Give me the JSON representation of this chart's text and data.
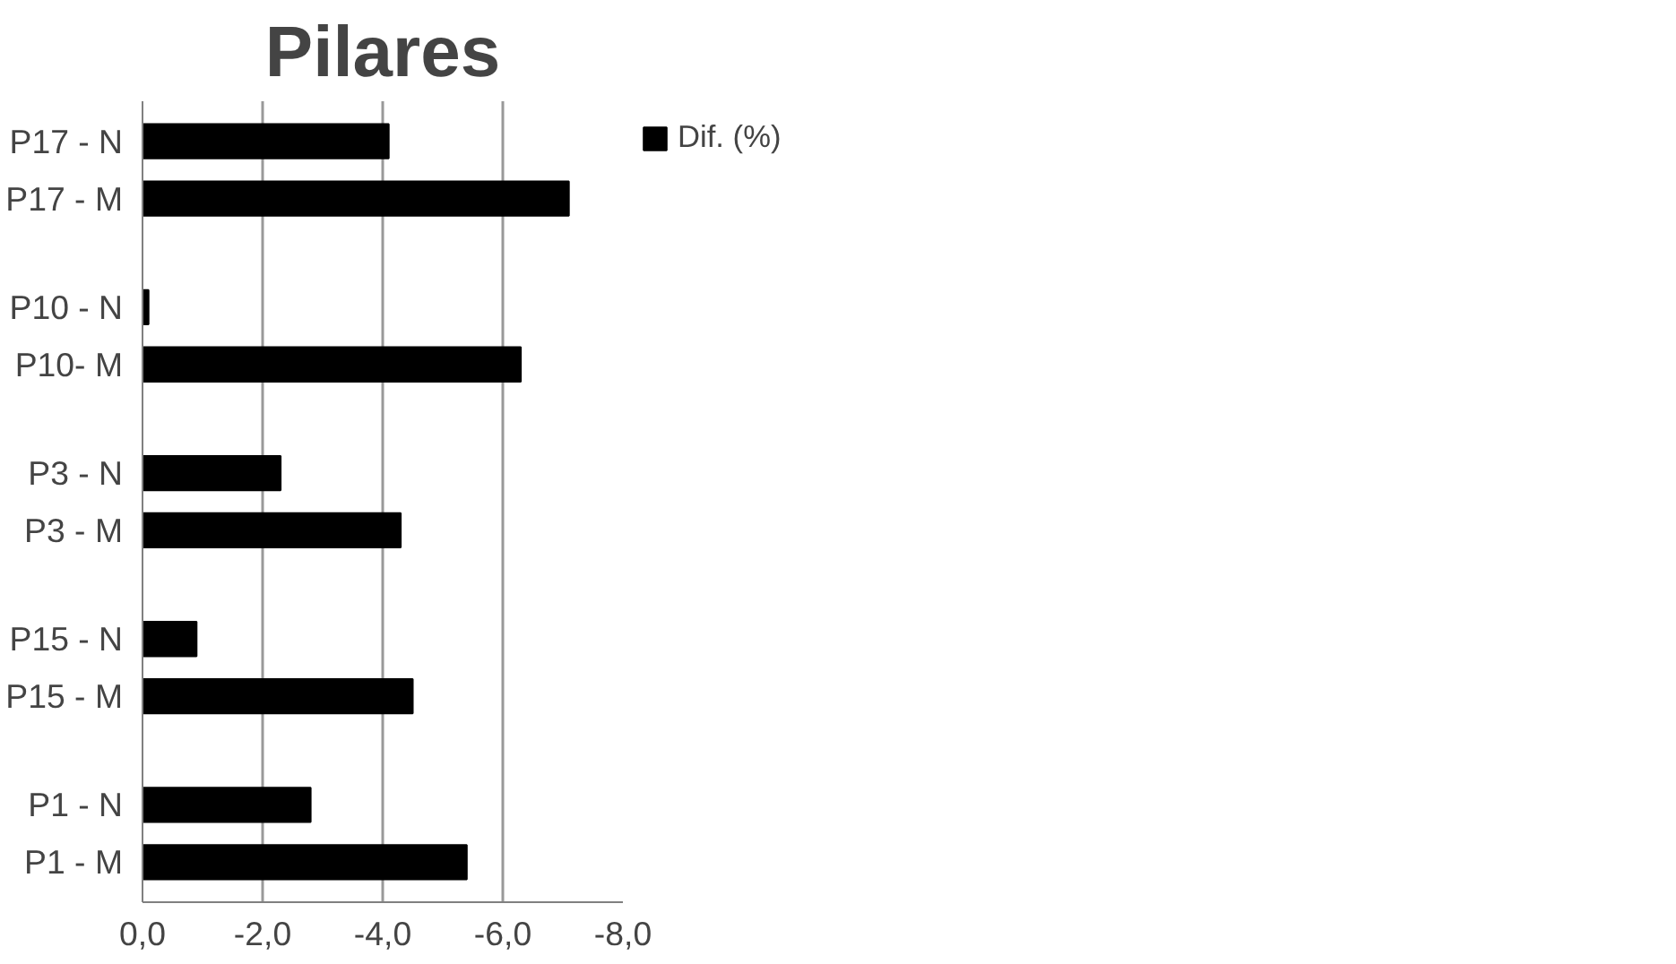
{
  "chart_data": {
    "type": "bar",
    "orientation": "horizontal",
    "title": "Pilares",
    "categories": [
      "P17 - N",
      "P17 - M",
      "P10 - N",
      "P10- M",
      "P3 - N",
      "P3 - M",
      "P15 - N",
      "P15 - M",
      "P1 - N",
      "P1 - M"
    ],
    "series": [
      {
        "name": "Dif. (%)",
        "color": "#000000",
        "values": [
          -4.1,
          -7.1,
          -0.1,
          -6.3,
          -2.3,
          -4.3,
          -0.9,
          -4.5,
          -2.8,
          -5.4
        ]
      }
    ],
    "xlim": [
      0,
      -8
    ],
    "xticks": [
      {
        "value": 0,
        "label": "0,0"
      },
      {
        "value": -2,
        "label": "-2,0"
      },
      {
        "value": -4,
        "label": "-4,0"
      },
      {
        "value": -6,
        "label": "-6,0"
      },
      {
        "value": -8,
        "label": "-8,0"
      }
    ],
    "grid": "x",
    "legend": "top right"
  }
}
